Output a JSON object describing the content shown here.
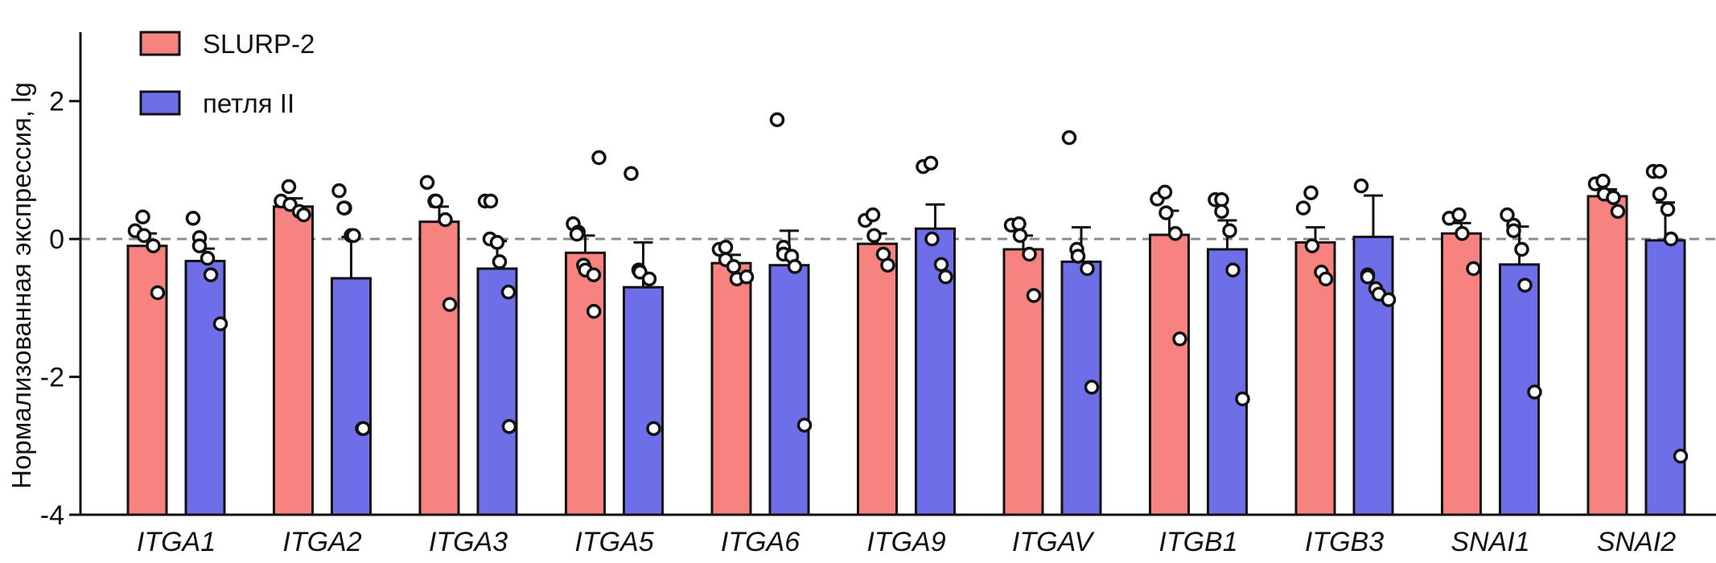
{
  "chart_data": {
    "type": "bar",
    "ylabel": "Нормализованная экспрессия, lg",
    "ylim": [
      -4,
      3
    ],
    "yticks": [
      2,
      0,
      -2,
      -4
    ],
    "ytick_labels": [
      "2",
      "0",
      "-2",
      "-4"
    ],
    "reference_line": 0,
    "legend_position": "top-left",
    "categories": [
      "ITGA1",
      "ITGA2",
      "ITGA3",
      "ITGA5",
      "ITGA6",
      "ITGA9",
      "ITGAV",
      "ITGB1",
      "ITGB3",
      "SNAI1",
      "SNAI2"
    ],
    "series": [
      {
        "name": "SLURP-2",
        "color": "#f78380",
        "values": [
          -0.1,
          0.47,
          0.25,
          -0.2,
          -0.35,
          -0.07,
          -0.15,
          0.06,
          -0.05,
          0.08,
          0.62
        ],
        "errors": [
          0.18,
          0.12,
          0.22,
          0.25,
          0.12,
          0.15,
          0.2,
          0.35,
          0.22,
          0.15,
          0.1
        ],
        "points": [
          [
            0.12,
            0.32,
            0.05,
            -0.1,
            -0.78
          ],
          [
            0.55,
            0.76,
            0.5,
            0.4,
            0.35
          ],
          [
            0.82,
            0.55,
            0.55,
            0.28,
            -0.95
          ],
          [
            0.22,
            0.1,
            0.07,
            -0.38,
            -0.45,
            -0.52,
            -1.05,
            1.18
          ],
          [
            -0.15,
            -0.12,
            -0.3,
            -0.4,
            -0.58,
            -0.55
          ],
          [
            0.27,
            0.35,
            0.05,
            -0.22,
            -0.38
          ],
          [
            0.2,
            0.22,
            0.05,
            -0.22,
            -0.82
          ],
          [
            0.58,
            0.68,
            0.38,
            0.08,
            -1.45
          ],
          [
            0.45,
            0.67,
            -0.1,
            -0.48,
            -0.58
          ],
          [
            0.3,
            0.35,
            0.08,
            -0.43
          ],
          [
            0.8,
            0.84,
            0.65,
            0.6,
            0.4
          ]
        ]
      },
      {
        "name": "петля II",
        "color": "#6e6ee8",
        "values": [
          -0.32,
          -0.57,
          -0.43,
          -0.7,
          -0.38,
          0.15,
          -0.33,
          -0.15,
          0.03,
          -0.37,
          -0.02
        ],
        "errors": [
          0.18,
          0.6,
          0.4,
          0.65,
          0.5,
          0.35,
          0.5,
          0.42,
          0.6,
          0.55,
          0.55
        ],
        "points": [
          [
            0.3,
            0.02,
            -0.1,
            -0.28,
            -0.52,
            -1.23
          ],
          [
            0.7,
            0.45,
            0.45,
            0.05,
            0.05,
            -2.75,
            -2.75
          ],
          [
            0.55,
            0.55,
            0.0,
            -0.05,
            -0.33,
            -0.77,
            -2.72
          ],
          [
            0.95,
            -0.45,
            -0.48,
            -0.58,
            -2.75
          ],
          [
            1.73,
            -0.12,
            -0.22,
            -0.25,
            -0.4,
            -2.7
          ],
          [
            1.05,
            1.1,
            0.0,
            -0.37,
            -0.55
          ],
          [
            1.47,
            -0.15,
            -0.25,
            -0.43,
            -2.15
          ],
          [
            0.57,
            0.57,
            0.4,
            0.12,
            -0.45,
            -2.32
          ],
          [
            0.77,
            -0.52,
            -0.55,
            -0.72,
            -0.8,
            -0.88
          ],
          [
            0.35,
            0.2,
            0.12,
            -0.15,
            -0.67,
            -2.22
          ],
          [
            0.98,
            0.98,
            0.65,
            0.43,
            0.0,
            -3.15
          ]
        ]
      }
    ]
  }
}
